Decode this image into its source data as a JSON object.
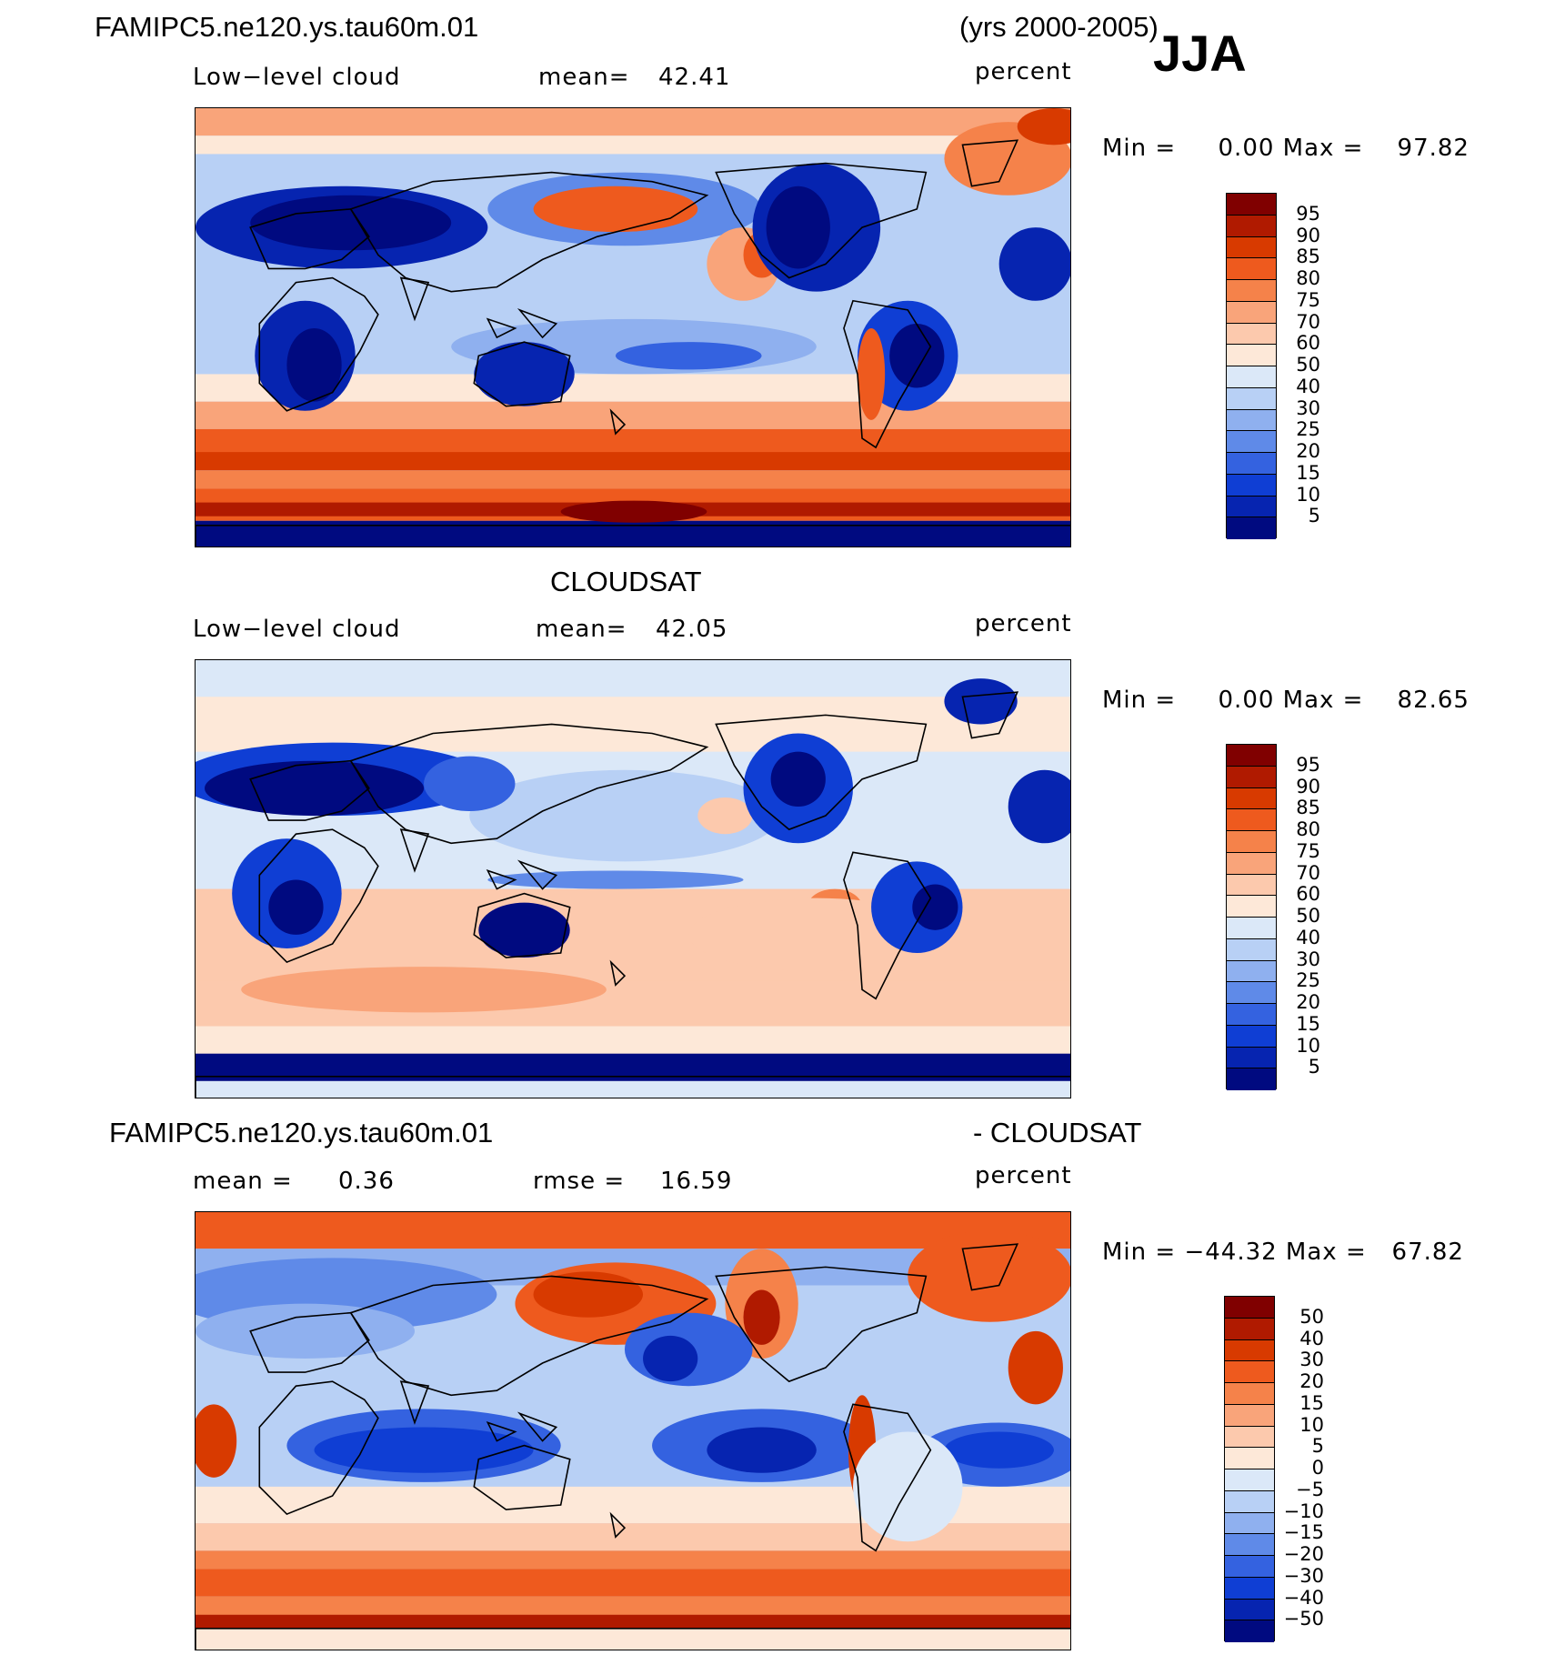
{
  "header": {
    "model_title": "FAMIPC5.ne120.ys.tau60m.01",
    "years": "(yrs 2000-2005)",
    "season": "JJA"
  },
  "panels": [
    {
      "title": "",
      "variable": "Low−level cloud",
      "stat1_label": "mean=",
      "stat1_value": "42.41",
      "stat2_label": "",
      "stat2_value": "",
      "units": "percent",
      "range_text": "Min =     0.00 Max =    97.82"
    },
    {
      "title": "CLOUDSAT",
      "variable": "Low−level cloud",
      "stat1_label": "mean=",
      "stat1_value": "42.05",
      "stat2_label": "",
      "stat2_value": "",
      "units": "percent",
      "range_text": "Min =     0.00 Max =    82.65"
    },
    {
      "title": "FAMIPC5.ne120.ys.tau60m.01",
      "title_right": "- CLOUDSAT",
      "variable": "",
      "stat1_label": "mean =",
      "stat1_value": "0.36",
      "stat2_label": "rmse =",
      "stat2_value": "16.59",
      "units": "percent",
      "range_text": "Min = −44.32 Max =   67.82"
    }
  ],
  "colorbars": {
    "absolute": {
      "labels": [
        "95",
        "90",
        "85",
        "80",
        "75",
        "70",
        "60",
        "50",
        "40",
        "30",
        "25",
        "20",
        "15",
        "10",
        "5"
      ],
      "colors": [
        "#800000",
        "#b01a00",
        "#d83a00",
        "#ee5a1e",
        "#f5824a",
        "#f9a47a",
        "#fcc9ad",
        "#fde8d8",
        "#dbe8f8",
        "#b8d0f5",
        "#8fb0ef",
        "#5f8ae8",
        "#3462e0",
        "#0f3ed4",
        "#0624b0",
        "#000a80"
      ]
    },
    "difference": {
      "labels": [
        "50",
        "40",
        "30",
        "20",
        "15",
        "10",
        "5",
        "0",
        "−5",
        "−10",
        "−15",
        "−20",
        "−30",
        "−40",
        "−50"
      ],
      "colors": [
        "#800000",
        "#b01a00",
        "#d83a00",
        "#ee5a1e",
        "#f5824a",
        "#f9a47a",
        "#fcc9ad",
        "#fde8d8",
        "#dbe8f8",
        "#b8d0f5",
        "#8fb0ef",
        "#5f8ae8",
        "#3462e0",
        "#0f3ed4",
        "#0624b0",
        "#000a80"
      ]
    }
  },
  "map_fields": {
    "model": "model-low-cloud",
    "obs": "cloudsat-low-cloud",
    "diff": "model-minus-cloudsat"
  }
}
